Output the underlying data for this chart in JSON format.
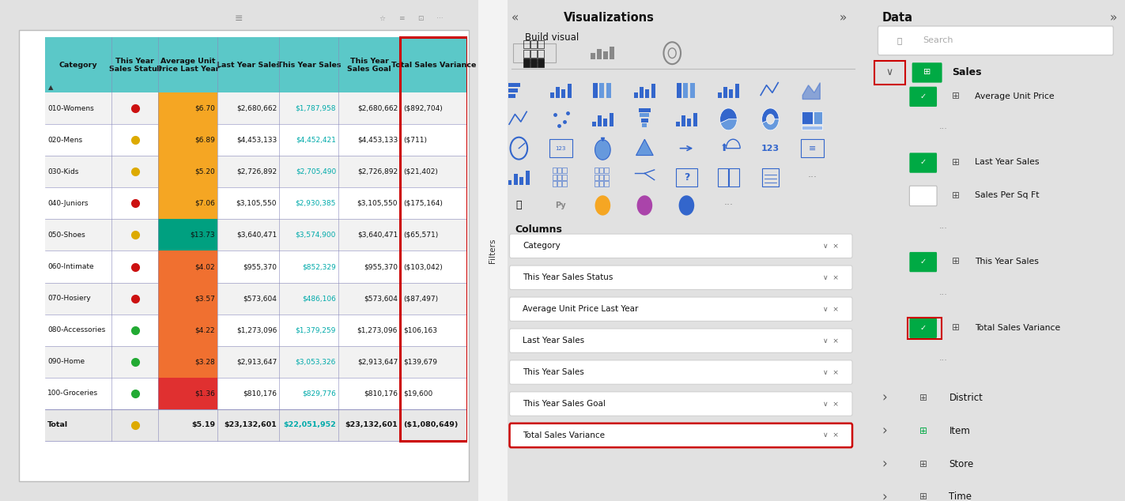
{
  "bg_color": "#e1e1e1",
  "header_bg": "#5bc8c8",
  "teal_text": "#00b0b0",
  "highlight_border": "#cc0000",
  "columns": [
    "Category",
    "This Year\nSales Status",
    "Average Unit\nPrice Last Year",
    "Last Year Sales",
    "This Year Sales",
    "This Year\nSales Goal",
    "Total Sales Variance"
  ],
  "col_widths": [
    1.35,
    0.95,
    1.2,
    1.25,
    1.2,
    1.25,
    1.35
  ],
  "rows": [
    [
      "010-Womens",
      "red",
      "$6.70",
      "$2,680,662",
      "$1,787,958",
      "$2,680,662",
      "($892,704)"
    ],
    [
      "020-Mens",
      "yellow",
      "$6.89",
      "$4,453,133",
      "$4,452,421",
      "$4,453,133",
      "($711)"
    ],
    [
      "030-Kids",
      "yellow",
      "$5.20",
      "$2,726,892",
      "$2,705,490",
      "$2,726,892",
      "($21,402)"
    ],
    [
      "040-Juniors",
      "red",
      "$7.06",
      "$3,105,550",
      "$2,930,385",
      "$3,105,550",
      "($175,164)"
    ],
    [
      "050-Shoes",
      "yellow",
      "$13.73",
      "$3,640,471",
      "$3,574,900",
      "$3,640,471",
      "($65,571)"
    ],
    [
      "060-Intimate",
      "red",
      "$4.02",
      "$955,370",
      "$852,329",
      "$955,370",
      "($103,042)"
    ],
    [
      "070-Hosiery",
      "red",
      "$3.57",
      "$573,604",
      "$486,106",
      "$573,604",
      "($87,497)"
    ],
    [
      "080-Accessories",
      "green",
      "$4.22",
      "$1,273,096",
      "$1,379,259",
      "$1,273,096",
      "$106,163"
    ],
    [
      "090-Home",
      "green",
      "$3.28",
      "$2,913,647",
      "$3,053,326",
      "$2,913,647",
      "$139,679"
    ],
    [
      "100-Groceries",
      "green",
      "$1.36",
      "$810,176",
      "$829,776",
      "$810,176",
      "$19,600"
    ]
  ],
  "total_row": [
    "Total",
    "yellow",
    "$5.19",
    "$23,132,601",
    "$22,051,952",
    "$23,132,601",
    "($1,080,649)"
  ],
  "avg_unit_price_colors": {
    "010-Womens": "#f5a623",
    "020-Mens": "#f5a623",
    "030-Kids": "#f5a623",
    "040-Juniors": "#f5a623",
    "050-Shoes": "#00a080",
    "060-Intimate": "#f07030",
    "070-Hosiery": "#f07030",
    "080-Accessories": "#f07030",
    "090-Home": "#f07030",
    "100-Groceries": "#e03030"
  },
  "columns_fields": [
    "Category",
    "This Year Sales Status",
    "Average Unit Price Last Year",
    "Last Year Sales",
    "This Year Sales",
    "This Year Sales Goal",
    "Total Sales Variance"
  ],
  "data_tree": [
    {
      "name": "Sales",
      "expanded": true,
      "has_red_border": true,
      "items": [
        {
          "name": "Average Unit Price",
          "checked": true,
          "dots": false,
          "red_border": false
        },
        {
          "name": "...",
          "checked": false,
          "dots": true,
          "red_border": false
        },
        {
          "name": "Last Year Sales",
          "checked": true,
          "dots": false,
          "red_border": false
        },
        {
          "name": "Sales Per Sq Ft",
          "checked": false,
          "dots": false,
          "red_border": false
        },
        {
          "name": "...",
          "checked": false,
          "dots": true,
          "red_border": false
        },
        {
          "name": "This Year Sales",
          "checked": true,
          "dots": false,
          "red_border": false
        },
        {
          "name": "...",
          "checked": false,
          "dots": true,
          "red_border": false
        },
        {
          "name": "Total Sales Variance",
          "checked": true,
          "dots": false,
          "red_border": true
        },
        {
          "name": "...",
          "checked": false,
          "dots": true,
          "red_border": false
        }
      ]
    },
    {
      "name": "District",
      "expanded": false,
      "has_red_border": false,
      "items": []
    },
    {
      "name": "Item",
      "expanded": false,
      "has_red_border": false,
      "items": []
    },
    {
      "name": "Store",
      "expanded": false,
      "has_red_border": false,
      "items": []
    },
    {
      "name": "Time",
      "expanded": false,
      "has_red_border": false,
      "items": []
    }
  ]
}
